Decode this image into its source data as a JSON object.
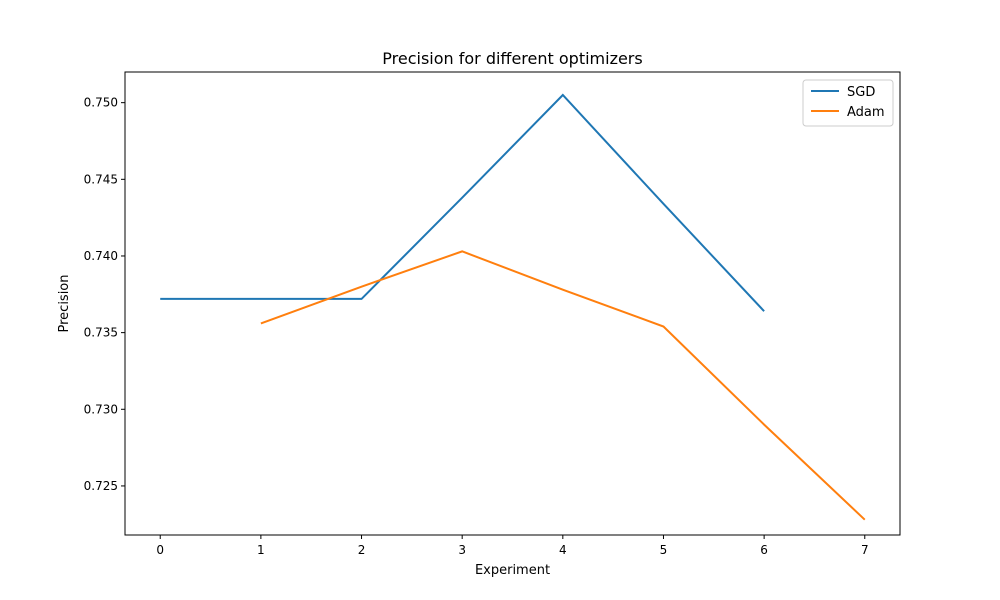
{
  "chart_data": {
    "type": "line",
    "title": "Precision for different optimizers",
    "xlabel": "Experiment",
    "ylabel": "Precision",
    "xlim": [
      -0.35,
      7.35
    ],
    "ylim": [
      0.7218,
      0.752
    ],
    "xticks": [
      0,
      1,
      2,
      3,
      4,
      5,
      6,
      7
    ],
    "yticks": [
      0.725,
      0.73,
      0.735,
      0.74,
      0.745,
      0.75
    ],
    "xtick_labels": [
      "0",
      "1",
      "2",
      "3",
      "4",
      "5",
      "6",
      "7"
    ],
    "ytick_labels": [
      "0.725",
      "0.730",
      "0.735",
      "0.740",
      "0.745",
      "0.750"
    ],
    "grid": false,
    "legend_position": "top-right",
    "series": [
      {
        "name": "SGD",
        "color": "#1f77b4",
        "x": [
          0,
          1,
          2,
          3,
          4,
          5,
          6
        ],
        "y": [
          0.7372,
          0.7372,
          0.7372,
          0.7438,
          0.7505,
          0.7434,
          0.7364
        ]
      },
      {
        "name": "Adam",
        "color": "#ff7f0e",
        "x": [
          1,
          2,
          3,
          4,
          5,
          6,
          7
        ],
        "y": [
          0.7356,
          0.738,
          0.7403,
          0.7378,
          0.7354,
          0.729,
          0.7228
        ]
      }
    ]
  }
}
